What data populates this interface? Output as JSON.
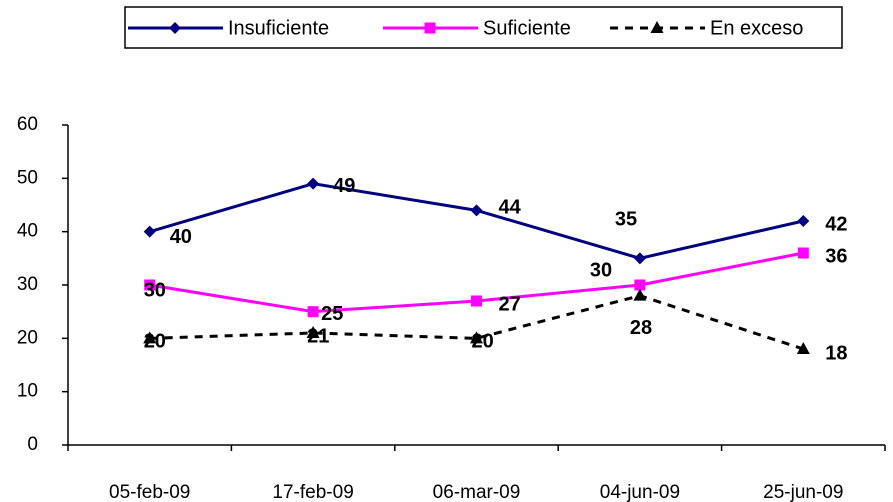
{
  "chart_data": {
    "type": "line",
    "categories": [
      "05-feb-09",
      "17-feb-09",
      "06-mar-09",
      "04-jun-09",
      "25-jun-09"
    ],
    "series": [
      {
        "name": "Insuficiente",
        "color": "#000080",
        "marker": "diamond",
        "dash": false,
        "values": [
          40,
          49,
          44,
          35,
          42
        ]
      },
      {
        "name": "Suficiente",
        "color": "#ff00ff",
        "marker": "square",
        "dash": false,
        "values": [
          30,
          25,
          27,
          30,
          36
        ]
      },
      {
        "name": "En exceso",
        "color": "#000000",
        "marker": "triangle",
        "dash": true,
        "values": [
          20,
          21,
          20,
          28,
          18
        ]
      }
    ],
    "ylim": [
      0,
      60
    ],
    "yticks": [
      0,
      10,
      20,
      30,
      40,
      50,
      60
    ],
    "grid": false,
    "legend": "top"
  }
}
